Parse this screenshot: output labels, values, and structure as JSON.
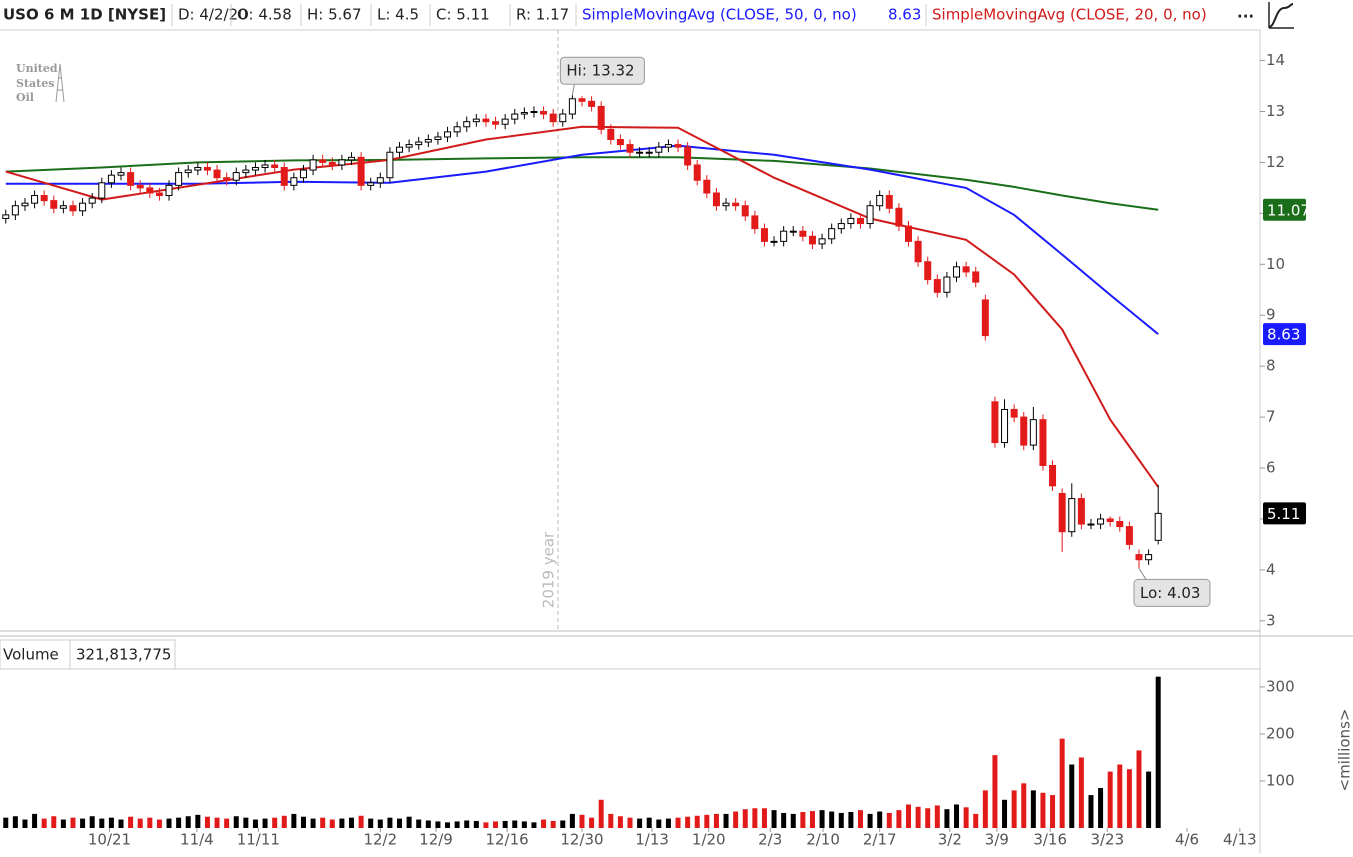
{
  "header": {
    "symbol": "USO 6 M 1D [NYSE]",
    "fields": [
      "D: 4/2/20",
      "O: 4.58",
      "H: 5.67",
      "L: 4.5",
      "C: 5.11",
      "R: 1.17"
    ],
    "more": "...",
    "logo": [
      "United",
      "States",
      "Oil"
    ]
  },
  "chart_data": [
    {
      "type": "candlestick",
      "xlim": [
        -0.6,
        130.6
      ],
      "ylim": [
        2.82,
        14.6
      ],
      "yticks": [
        3,
        4,
        5,
        6,
        7,
        8,
        9,
        10,
        11,
        12,
        13,
        14
      ],
      "up_color": "#000000",
      "down_color": "#e31a1a",
      "open": [
        10.9,
        10.97,
        11.15,
        11.2,
        11.35,
        11.25,
        11.1,
        11.15,
        11.05,
        11.2,
        11.3,
        11.6,
        11.75,
        11.8,
        11.55,
        11.5,
        11.4,
        11.35,
        11.55,
        11.8,
        11.85,
        11.9,
        11.85,
        11.7,
        11.65,
        11.8,
        11.85,
        11.9,
        11.95,
        11.9,
        11.55,
        11.7,
        11.85,
        12.05,
        12.0,
        11.95,
        12.05,
        12.1,
        11.55,
        11.6,
        11.7,
        12.2,
        12.3,
        12.35,
        12.4,
        12.45,
        12.5,
        12.6,
        12.7,
        12.8,
        12.85,
        12.8,
        12.75,
        12.85,
        12.95,
        12.98,
        13.0,
        12.95,
        12.8,
        12.95,
        13.25,
        13.2,
        13.1,
        12.65,
        12.45,
        12.35,
        12.2,
        12.2,
        12.2,
        12.3,
        12.35,
        12.3,
        11.95,
        11.65,
        11.4,
        11.15,
        11.2,
        11.15,
        10.95,
        10.7,
        10.45,
        10.45,
        10.65,
        10.65,
        10.55,
        10.4,
        10.5,
        10.7,
        10.8,
        10.9,
        10.8,
        11.15,
        11.35,
        11.1,
        10.75,
        10.45,
        10.05,
        9.7,
        9.45,
        9.75,
        9.95,
        9.85,
        9.3,
        7.3,
        6.5,
        7.15,
        7.0,
        6.45,
        6.95,
        6.05,
        5.5,
        4.75,
        5.4,
        4.9,
        4.9,
        5.0,
        4.95,
        4.85,
        4.3,
        4.2,
        4.58
      ],
      "high": [
        11.07,
        11.25,
        11.3,
        11.45,
        11.45,
        11.35,
        11.25,
        11.25,
        11.3,
        11.4,
        11.7,
        11.85,
        11.9,
        11.9,
        11.65,
        11.6,
        11.5,
        11.65,
        11.9,
        11.95,
        12.0,
        12.0,
        11.95,
        11.8,
        11.9,
        11.95,
        12.0,
        12.05,
        12.05,
        12.0,
        11.8,
        11.95,
        12.15,
        12.15,
        12.1,
        12.15,
        12.2,
        12.2,
        11.7,
        11.8,
        12.3,
        12.4,
        12.45,
        12.5,
        12.55,
        12.6,
        12.7,
        12.8,
        12.9,
        12.95,
        12.95,
        12.9,
        12.95,
        13.05,
        13.08,
        13.1,
        13.1,
        13.05,
        13.05,
        13.32,
        13.3,
        13.3,
        13.2,
        12.75,
        12.55,
        12.45,
        12.3,
        12.3,
        12.4,
        12.45,
        12.45,
        12.4,
        12.05,
        11.75,
        11.5,
        11.3,
        11.3,
        11.25,
        11.05,
        10.8,
        10.55,
        10.75,
        10.75,
        10.75,
        10.65,
        10.6,
        10.8,
        10.9,
        11.0,
        11.0,
        11.25,
        11.45,
        11.45,
        11.2,
        10.85,
        10.55,
        10.15,
        9.8,
        9.85,
        10.05,
        10.05,
        9.95,
        9.4,
        7.4,
        7.35,
        7.25,
        7.1,
        7.2,
        7.05,
        6.15,
        5.6,
        5.7,
        5.5,
        5.0,
        5.1,
        5.05,
        5.05,
        4.95,
        4.4,
        4.4,
        5.67
      ],
      "low": [
        10.8,
        10.87,
        11.05,
        11.1,
        11.15,
        11.0,
        11.0,
        10.95,
        10.95,
        11.1,
        11.2,
        11.5,
        11.65,
        11.45,
        11.4,
        11.3,
        11.25,
        11.25,
        11.45,
        11.7,
        11.75,
        11.75,
        11.6,
        11.55,
        11.55,
        11.7,
        11.75,
        11.8,
        11.8,
        11.45,
        11.45,
        11.6,
        11.75,
        11.9,
        11.85,
        11.85,
        11.95,
        11.45,
        11.45,
        11.5,
        11.6,
        12.1,
        12.2,
        12.25,
        12.3,
        12.35,
        12.4,
        12.5,
        12.6,
        12.7,
        12.7,
        12.65,
        12.65,
        12.75,
        12.85,
        12.88,
        12.85,
        12.7,
        12.7,
        12.85,
        13.1,
        13.0,
        12.55,
        12.35,
        12.25,
        12.1,
        12.1,
        12.1,
        12.1,
        12.2,
        12.2,
        11.85,
        11.55,
        11.3,
        11.05,
        11.05,
        11.05,
        10.85,
        10.6,
        10.35,
        10.35,
        10.35,
        10.55,
        10.45,
        10.3,
        10.3,
        10.4,
        10.6,
        10.7,
        10.7,
        10.7,
        11.05,
        11.0,
        10.65,
        10.35,
        9.95,
        9.6,
        9.35,
        9.35,
        9.65,
        9.75,
        9.55,
        8.5,
        6.4,
        6.4,
        6.9,
        6.35,
        6.35,
        5.95,
        5.55,
        4.35,
        4.65,
        4.8,
        4.8,
        4.8,
        4.85,
        4.75,
        4.4,
        4.03,
        4.1,
        4.5
      ],
      "close": [
        10.97,
        11.15,
        11.2,
        11.35,
        11.25,
        11.1,
        11.15,
        11.05,
        11.2,
        11.3,
        11.6,
        11.75,
        11.8,
        11.55,
        11.5,
        11.4,
        11.35,
        11.55,
        11.8,
        11.85,
        11.9,
        11.85,
        11.7,
        11.65,
        11.8,
        11.85,
        11.9,
        11.95,
        11.9,
        11.55,
        11.7,
        11.85,
        12.05,
        12.0,
        11.95,
        12.05,
        12.1,
        11.55,
        11.6,
        11.7,
        12.2,
        12.3,
        12.35,
        12.4,
        12.45,
        12.5,
        12.6,
        12.7,
        12.8,
        12.85,
        12.8,
        12.75,
        12.85,
        12.95,
        12.98,
        13.0,
        12.95,
        12.8,
        12.95,
        13.25,
        13.2,
        13.1,
        12.65,
        12.45,
        12.35,
        12.2,
        12.2,
        12.2,
        12.3,
        12.35,
        12.3,
        11.95,
        11.65,
        11.4,
        11.15,
        11.2,
        11.15,
        10.95,
        10.7,
        10.45,
        10.45,
        10.65,
        10.65,
        10.55,
        10.4,
        10.5,
        10.7,
        10.8,
        10.9,
        10.8,
        11.15,
        11.35,
        11.1,
        10.75,
        10.45,
        10.05,
        9.7,
        9.45,
        9.75,
        9.95,
        9.85,
        9.65,
        8.6,
        6.5,
        7.15,
        7.0,
        6.45,
        6.95,
        6.05,
        5.65,
        4.75,
        5.4,
        4.9,
        4.9,
        5.0,
        4.95,
        4.85,
        4.5,
        4.2,
        4.3,
        5.11
      ],
      "series": [
        {
          "color": "#1a6e1a",
          "x": [
            0,
            10,
            20,
            30,
            40,
            50,
            60,
            70,
            80,
            90,
            100,
            105,
            110,
            115,
            120
          ],
          "values": [
            11.82,
            11.9,
            12.0,
            12.04,
            12.05,
            12.08,
            12.1,
            12.1,
            12.03,
            11.88,
            11.66,
            11.52,
            11.35,
            11.2,
            11.07
          ]
        },
        {
          "name": "SimpleMovingAvg (CLOSE, 50, 0, no)",
          "color": "#1a1aff",
          "x": [
            0,
            10,
            20,
            30,
            40,
            50,
            60,
            70,
            80,
            90,
            100,
            105,
            110,
            115,
            120
          ],
          "values": [
            11.58,
            11.58,
            11.58,
            11.62,
            11.6,
            11.82,
            12.15,
            12.33,
            12.15,
            11.86,
            11.5,
            10.97,
            10.19,
            9.4,
            8.63
          ]
        },
        {
          "name": "SimpleMovingAvg (CLOSE, 20, 0, no)",
          "color": "#d11a1a",
          "x": [
            0,
            10,
            20,
            30,
            40,
            50,
            60,
            70,
            80,
            90,
            100,
            105,
            110,
            115,
            120
          ],
          "values": [
            11.82,
            11.27,
            11.56,
            11.86,
            12.05,
            12.45,
            12.7,
            12.68,
            11.7,
            10.9,
            10.48,
            9.8,
            8.72,
            6.95,
            5.63
          ]
        }
      ],
      "annotations": [
        {
          "text": "Hi: 13.32",
          "x": 59,
          "y": 13.32
        },
        {
          "text": "Lo: 4.03",
          "x": 118,
          "y": 4.03
        }
      ],
      "divider": {
        "text": "2019 year",
        "x": 57.5
      }
    },
    {
      "type": "bar",
      "title": "Volume",
      "value_label": "321,813,775",
      "ylabel": "<millions>",
      "xlim": [
        -0.6,
        130.6
      ],
      "ylim": [
        0,
        336
      ],
      "yticks": [
        100,
        200,
        300
      ],
      "up_color": "#000000",
      "down_color": "#e31a1a",
      "xticks": [
        {
          "value": 10.8,
          "label": "10/21"
        },
        {
          "value": 19.9,
          "label": "11/4"
        },
        {
          "value": 26.3,
          "label": "11/11"
        },
        {
          "value": 39,
          "label": "12/2"
        },
        {
          "value": 44.8,
          "label": "12/9"
        },
        {
          "value": 52.2,
          "label": "12/16"
        },
        {
          "value": 60,
          "label": "12/30"
        },
        {
          "value": 67.3,
          "label": "1/13"
        },
        {
          "value": 73.2,
          "label": "1/20"
        },
        {
          "value": 79.6,
          "label": "2/3"
        },
        {
          "value": 85.1,
          "label": "2/10"
        },
        {
          "value": 91,
          "label": "2/17"
        },
        {
          "value": 98.3,
          "label": "3/2"
        },
        {
          "value": 103.2,
          "label": "3/9"
        },
        {
          "value": 108.75,
          "label": "3/16"
        },
        {
          "value": 114.7,
          "label": "3/23"
        },
        {
          "value": 123,
          "label": "4/6"
        },
        {
          "value": 128.5,
          "label": "4/13"
        }
      ],
      "values": [
        22,
        25,
        18,
        30,
        20,
        25,
        18,
        22,
        20,
        25,
        20,
        22,
        18,
        24,
        20,
        22,
        18,
        20,
        22,
        25,
        28,
        24,
        22,
        20,
        25,
        22,
        18,
        20,
        22,
        26,
        30,
        24,
        20,
        22,
        18,
        20,
        22,
        26,
        20,
        18,
        22,
        20,
        24,
        18,
        16,
        14,
        12,
        14,
        16,
        15,
        12,
        14,
        15,
        16,
        14,
        12,
        18,
        15,
        16,
        30,
        28,
        22,
        60,
        30,
        25,
        22,
        20,
        22,
        18,
        20,
        22,
        24,
        26,
        28,
        30,
        30,
        35,
        40,
        42,
        42,
        38,
        32,
        30,
        34,
        36,
        38,
        35,
        32,
        34,
        38,
        30,
        35,
        32,
        38,
        50,
        45,
        42,
        48,
        40,
        50,
        44,
        30,
        80,
        155,
        60,
        80,
        95,
        80,
        75,
        70,
        190,
        135,
        150,
        70,
        85,
        120,
        135,
        125,
        165,
        120,
        321.813775
      ]
    }
  ]
}
